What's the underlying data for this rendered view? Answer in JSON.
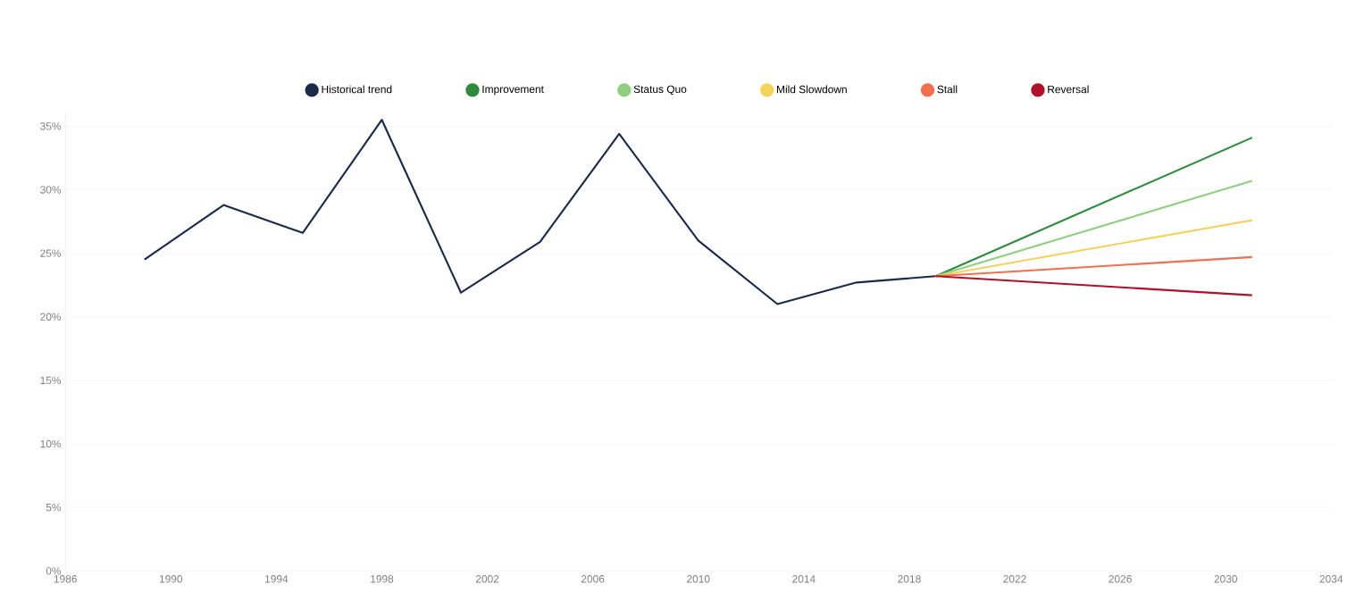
{
  "chart_data": {
    "type": "line",
    "xlim": [
      1986,
      2034
    ],
    "xticks": [
      1986,
      1990,
      1994,
      1998,
      2002,
      2006,
      2010,
      2014,
      2018,
      2022,
      2026,
      2030,
      2034
    ],
    "ylim": [
      0,
      36
    ],
    "yticks": [
      {
        "value": 0,
        "label": "0%"
      },
      {
        "value": 5,
        "label": "5%"
      },
      {
        "value": 10,
        "label": "10%"
      },
      {
        "value": 15,
        "label": "15%"
      },
      {
        "value": 20,
        "label": "20%"
      },
      {
        "value": 25,
        "label": "25%"
      },
      {
        "value": 30,
        "label": "30%"
      },
      {
        "value": 35,
        "label": "35%"
      }
    ],
    "grid": "y",
    "legend": "top",
    "series": [
      {
        "name": "Historical trend",
        "color": "#1b2a4a",
        "x": [
          1989,
          1992,
          1995,
          1998,
          2001,
          2004,
          2007,
          2010,
          2013,
          2016,
          2019
        ],
        "values": [
          24.5,
          28.8,
          26.6,
          35.5,
          21.9,
          25.9,
          34.4,
          26.0,
          21.0,
          22.7,
          23.2
        ]
      },
      {
        "name": "Improvement",
        "color": "#2e8b3e",
        "x": [
          2019,
          2031
        ],
        "values": [
          23.2,
          34.1
        ]
      },
      {
        "name": "Status Quo",
        "color": "#8fcf7f",
        "x": [
          2019,
          2031
        ],
        "values": [
          23.2,
          30.7
        ]
      },
      {
        "name": "Mild Slowdown",
        "color": "#f5d35a",
        "x": [
          2019,
          2031
        ],
        "values": [
          23.2,
          27.6
        ]
      },
      {
        "name": "Stall",
        "color": "#f07050",
        "x": [
          2019,
          2031
        ],
        "values": [
          23.2,
          24.7
        ]
      },
      {
        "name": "Reversal",
        "color": "#b0102a",
        "x": [
          2019,
          2031
        ],
        "values": [
          23.2,
          21.7
        ]
      }
    ]
  }
}
